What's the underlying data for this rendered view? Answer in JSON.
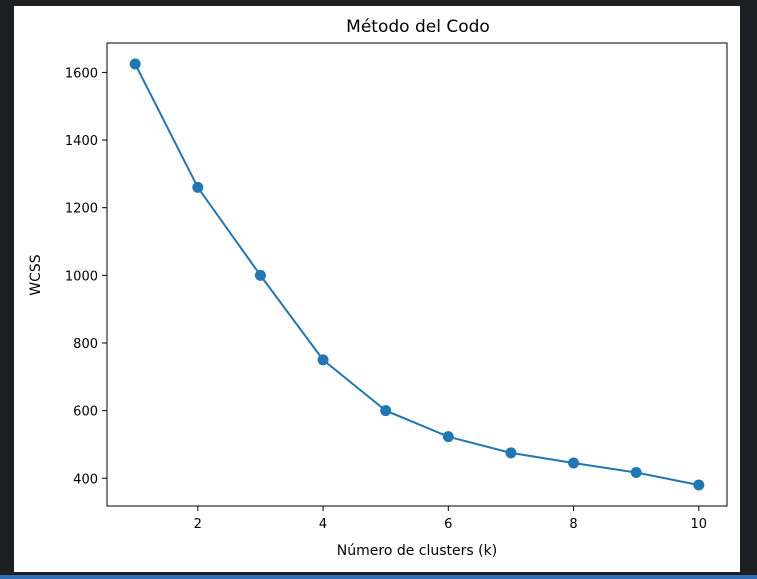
{
  "colors": {
    "background": "#1e1f22",
    "figure": "#ffffff",
    "line": "#1f77b4",
    "accent_strip": "#2f6fb5"
  },
  "chart_data": {
    "type": "line",
    "title": "Método del Codo",
    "xlabel": "Número de clusters (k)",
    "ylabel": "WCSS",
    "x": [
      1,
      2,
      3,
      4,
      5,
      6,
      7,
      8,
      9,
      10
    ],
    "series": [
      {
        "values": [
          1625,
          1260,
          1000,
          750,
          600,
          523,
          475,
          445,
          417,
          380
        ],
        "marker": "circle"
      }
    ],
    "xlim": [
      0.55,
      10.45
    ],
    "ylim": [
      318,
      1687
    ],
    "xticks": [
      2,
      4,
      6,
      8,
      10
    ],
    "yticks": [
      400,
      600,
      800,
      1000,
      1200,
      1400,
      1600
    ],
    "grid": false,
    "legend": "none"
  }
}
